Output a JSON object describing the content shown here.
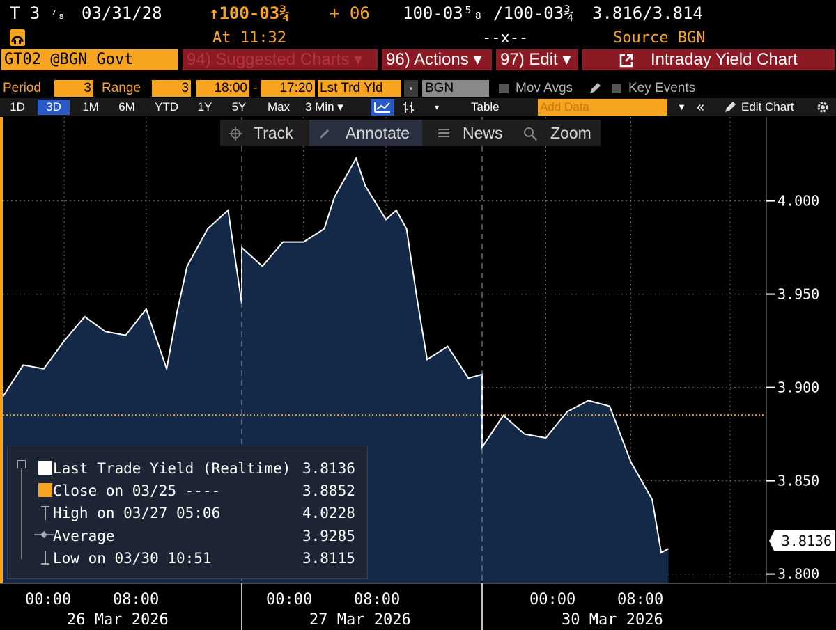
{
  "header": {
    "ticker_prefix": "T 3",
    "ticker_fraction": "⁷₈",
    "maturity": "03/31/28",
    "price_arrow": "↑",
    "price": "100-03¾",
    "change": "+ 06",
    "bid_ask": "100-03⁵₈ /100-03¾",
    "yields": "3.816/3.814",
    "time": "At 11:32",
    "size": "--x--",
    "source": "Source BGN"
  },
  "toolbar": {
    "security": "GT02 @BGN Govt",
    "suggested_charts": "94) Suggested Charts ▾",
    "actions": "96) Actions ▾",
    "edit": "97) Edit ▾",
    "title": "Intraday Yield Chart"
  },
  "period_row": {
    "period_label": "Period",
    "period_value": "3",
    "range_label": "Range",
    "range_value": "3",
    "start_time": "18:00",
    "dash": "-",
    "end_time": "17:20",
    "field": "Lst Trd Yld",
    "source": "BGN",
    "mov_avgs": "Mov Avgs",
    "key_events": "Key Events"
  },
  "range_row": {
    "buttons": [
      "1D",
      "3D",
      "1M",
      "6M",
      "YTD",
      "1Y",
      "5Y",
      "Max"
    ],
    "selected": "3D",
    "interval": "3 Min ▾",
    "table": "Table",
    "add_data_placeholder": "Add Data",
    "edit_chart": "Edit Chart"
  },
  "chart_toolbar": {
    "track": "Track",
    "annotate": "Annotate",
    "news": "News",
    "zoom": "Zoom"
  },
  "legend": {
    "rows": [
      {
        "label": "Last Trade Yield (Realtime)",
        "value": "3.8136",
        "marker": "white-square"
      },
      {
        "label": "Close on 03/25 ----",
        "value": "3.8852",
        "marker": "orange-square"
      },
      {
        "label": "High on 03/27 05:06",
        "value": "4.0228",
        "marker": "high-marker"
      },
      {
        "label": "Average",
        "value": "3.9285",
        "marker": "average-marker"
      },
      {
        "label": "Low on 03/30 10:51",
        "value": "3.8115",
        "marker": "low-marker"
      }
    ]
  },
  "colors": {
    "accent_orange": "#f7a521",
    "toolbar_red": "#8b1a24",
    "area_fill": "#142848",
    "line": "#ffffff",
    "background": "#000000"
  },
  "chart_data": {
    "type": "area",
    "series": [
      {
        "name": "Last Trade Yield (Realtime)",
        "x": [
          "03/25 18:00",
          "03/25 20:00",
          "03/25 22:00",
          "03/26 00:00",
          "03/26 02:00",
          "03/26 04:00",
          "03/26 06:00",
          "03/26 08:00",
          "03/26 10:00",
          "03/26 11:00",
          "03/26 12:00",
          "03/26 14:00",
          "03/26 16:00",
          "03/26 17:20",
          "03/26 18:00",
          "03/26 20:00",
          "03/26 22:00",
          "03/27 00:00",
          "03/27 02:00",
          "03/27 03:00",
          "03/27 05:06",
          "03/27 06:00",
          "03/27 08:00",
          "03/27 09:00",
          "03/27 10:00",
          "03/27 11:00",
          "03/27 12:00",
          "03/27 14:00",
          "03/27 16:00",
          "03/27 17:20",
          "03/29 18:00",
          "03/29 20:00",
          "03/29 22:00",
          "03/30 00:00",
          "03/30 02:00",
          "03/30 04:00",
          "03/30 06:00",
          "03/30 08:00",
          "03/30 10:00",
          "03/30 10:51",
          "03/30 11:32"
        ],
        "y": [
          3.895,
          3.912,
          3.91,
          3.925,
          3.938,
          3.93,
          3.928,
          3.942,
          3.91,
          3.94,
          3.965,
          3.985,
          3.995,
          3.945,
          3.975,
          3.965,
          3.978,
          3.978,
          3.985,
          4.002,
          4.0228,
          4.008,
          3.99,
          3.995,
          3.985,
          3.948,
          3.915,
          3.922,
          3.905,
          3.907,
          3.868,
          3.885,
          3.875,
          3.873,
          3.887,
          3.893,
          3.89,
          3.86,
          3.84,
          3.8115,
          3.8136
        ]
      }
    ],
    "reference_lines": [
      {
        "name": "Close on 03/25",
        "y": 3.8852,
        "color": "#f7a521",
        "style": "dotted"
      }
    ],
    "last_value_label": "3.8136",
    "y_ticks": [
      "4.000",
      "3.950",
      "3.900",
      "3.850",
      "3.800"
    ],
    "ylim": [
      3.795,
      4.045
    ],
    "x_time_labels": [
      "00:00",
      "08:00",
      "00:00",
      "08:00",
      "00:00",
      "08:00"
    ],
    "x_date_labels": [
      "26 Mar 2026",
      "27 Mar 2026",
      "30 Mar 2026"
    ],
    "grid": true,
    "xlabel": "",
    "ylabel": ""
  }
}
